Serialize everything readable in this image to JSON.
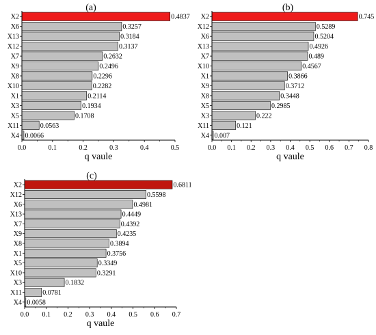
{
  "chart_data": [
    {
      "type": "bar",
      "orientation": "horizontal",
      "title": "(a)",
      "xlabel": "q vaule",
      "xlim": [
        0,
        0.5
      ],
      "xticks": [
        "0.0",
        "0.1",
        "0.2",
        "0.3",
        "0.4",
        "0.5"
      ],
      "highlight_color": "#ee1c1c",
      "bar_color": "#c0c0c0",
      "categories": [
        "X2",
        "X6",
        "X13",
        "X12",
        "X7",
        "X9",
        "X8",
        "X10",
        "X1",
        "X3",
        "X5",
        "X11",
        "X4"
      ],
      "values": [
        0.4837,
        0.3257,
        0.3184,
        0.3137,
        0.2632,
        0.2496,
        0.2296,
        0.2282,
        0.2114,
        0.1934,
        0.1708,
        0.0563,
        0.0066
      ],
      "labels": [
        "0.4837",
        "0.3257",
        "0.3184",
        "0.3137",
        "0.2632",
        "0.2496",
        "0.2296",
        "0.2282",
        "0.2114",
        "0.1934",
        "0.1708",
        "0.0563",
        "0.0066"
      ]
    },
    {
      "type": "bar",
      "orientation": "horizontal",
      "title": "(b)",
      "xlabel": "q vaule",
      "xlim": [
        0,
        0.8
      ],
      "xticks": [
        "0.0",
        "0.1",
        "0.2",
        "0.3",
        "0.4",
        "0.5",
        "0.6",
        "0.7",
        "0.8"
      ],
      "highlight_color": "#ee1c1c",
      "bar_color": "#c0c0c0",
      "categories": [
        "X2",
        "X12",
        "X6",
        "X13",
        "X7",
        "X10",
        "X1",
        "X9",
        "X8",
        "X5",
        "X3",
        "X11",
        "X4"
      ],
      "values": [
        0.745,
        0.5289,
        0.5204,
        0.4926,
        0.489,
        0.4567,
        0.3866,
        0.3712,
        0.3448,
        0.2985,
        0.222,
        0.121,
        0.007
      ],
      "labels": [
        "0.745",
        "0.5289",
        "0.5204",
        "0.4926",
        "0.489",
        "0.4567",
        "0.3866",
        "0.3712",
        "0.3448",
        "0.2985",
        "0.222",
        "0.121",
        "0.007"
      ]
    },
    {
      "type": "bar",
      "orientation": "horizontal",
      "title": "(c)",
      "xlabel": "q vaule",
      "xlim": [
        0,
        0.7
      ],
      "xticks": [
        "0.0",
        "0.1",
        "0.2",
        "0.3",
        "0.4",
        "0.5",
        "0.6",
        "0.7"
      ],
      "highlight_color": "#c0160f",
      "bar_color": "#c0c0c0",
      "categories": [
        "X2",
        "X12",
        "X6",
        "X13",
        "X7",
        "X9",
        "X8",
        "X1",
        "X5",
        "X10",
        "X3",
        "X11",
        "X4"
      ],
      "values": [
        0.6811,
        0.5598,
        0.4981,
        0.4449,
        0.4392,
        0.4235,
        0.3894,
        0.3756,
        0.3349,
        0.3291,
        0.1832,
        0.0781,
        0.0058
      ],
      "labels": [
        "0.6811",
        "0.5598",
        "0.4981",
        "0.4449",
        "0.4392",
        "0.4235",
        "0.3894",
        "0.3756",
        "0.3349",
        "0.3291",
        "0.1832",
        "0.0781",
        "0.0058"
      ]
    }
  ]
}
